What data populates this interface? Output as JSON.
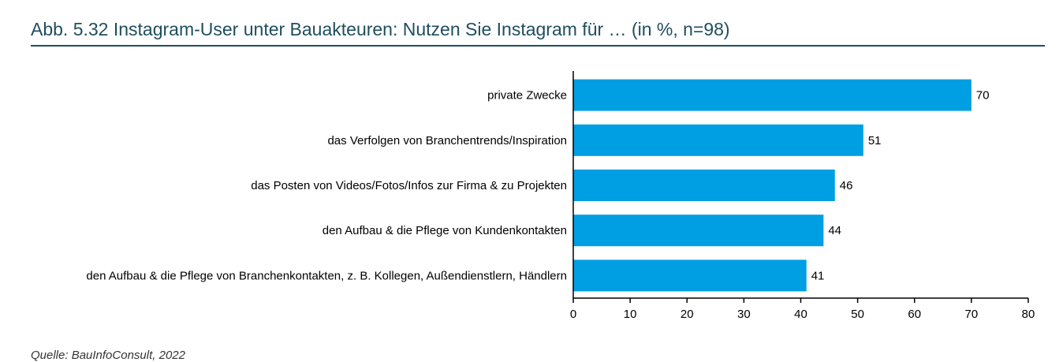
{
  "title": "Abb. 5.32 Instagram-User unter Bauakteuren: Nutzen Sie Instagram für … (in %, n=98)",
  "source": "Quelle: BauInfoConsult, 2022",
  "colors": {
    "bar": "#009ee3",
    "title": "#1f4e5f",
    "axis": "#000000",
    "text": "#000000"
  },
  "chart_data": {
    "type": "bar",
    "orientation": "horizontal",
    "categories": [
      "private Zwecke",
      "das Verfolgen von Branchentrends/Inspiration",
      "das Posten von Videos/Fotos/Infos zur Firma & zu Projekten",
      "den Aufbau & die Pflege von Kundenkontakten",
      "den Aufbau & die Pflege von Branchenkontakten, z. B. Kollegen, Außendienstlern, Händlern"
    ],
    "values": [
      70,
      51,
      46,
      44,
      41
    ],
    "data_labels": [
      "70",
      "51",
      "46",
      "44",
      "41"
    ],
    "xlim": [
      0,
      80
    ],
    "xticks": [
      0,
      10,
      20,
      30,
      40,
      50,
      60,
      70,
      80
    ],
    "xlabel": "",
    "ylabel": "",
    "grid": false,
    "legend": "none"
  }
}
